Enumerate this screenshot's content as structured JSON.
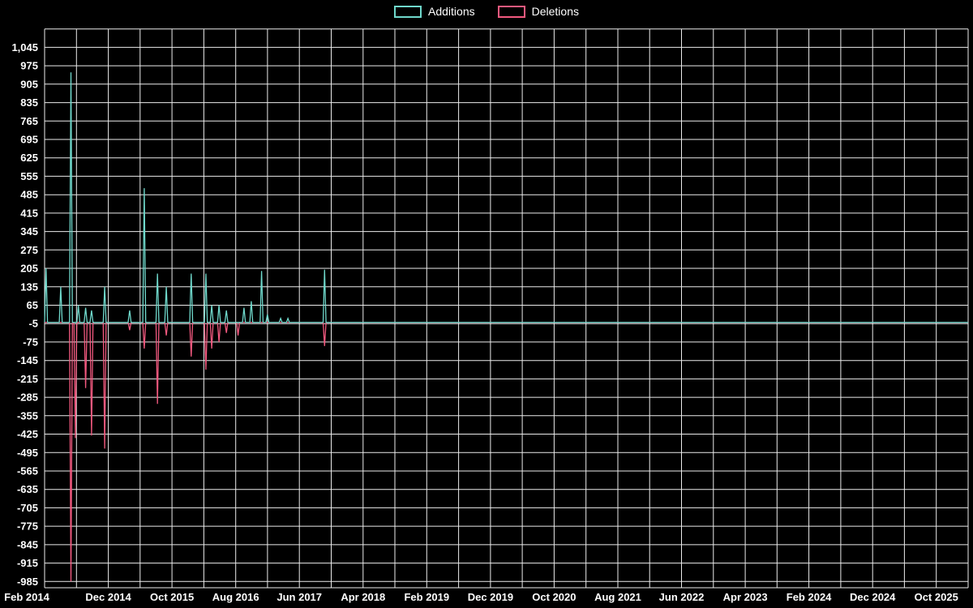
{
  "page": {
    "background": "#000000"
  },
  "chart_data": {
    "type": "line",
    "description": "Weekly code additions and deletions over time",
    "legend_position": "top-center",
    "grid": true,
    "background": "#000000",
    "gridline_color": "#ffffff",
    "text_color": "#ffffff",
    "x_axis": {
      "unit": "month",
      "tick_labels": [
        "Feb 2014",
        "Dec 2014",
        "Oct 2015",
        "Aug 2016",
        "Jun 2017",
        "Apr 2018",
        "Feb 2019",
        "Dec 2019",
        "Oct 2020",
        "Aug 2021",
        "Jun 2022",
        "Apr 2023",
        "Feb 2024",
        "Dec 2024",
        "Oct 2025"
      ],
      "label_every_months": 10,
      "gridline_every_months": 5,
      "total_months": 145
    },
    "y_axis": {
      "tick_values": [
        1045,
        975,
        905,
        835,
        765,
        695,
        625,
        555,
        485,
        415,
        345,
        275,
        205,
        135,
        65,
        -5,
        -75,
        -145,
        -215,
        -285,
        -355,
        -425,
        -495,
        -565,
        -635,
        -705,
        -775,
        -845,
        -915,
        -985
      ],
      "tick_labels": [
        "1,045",
        "975",
        "905",
        "835",
        "765",
        "695",
        "625",
        "555",
        "485",
        "415",
        "345",
        "275",
        "205",
        "135",
        "65",
        "-5",
        "-75",
        "-145",
        "-215",
        "-285",
        "-355",
        "-425",
        "-495",
        "-565",
        "-635",
        "-705",
        "-775",
        "-845",
        "-915",
        "-985"
      ],
      "extra_gridline_value": 1115,
      "min": -1010,
      "max": 1117
    },
    "weeks_per_month": 4.345,
    "series": [
      {
        "name": "Additions",
        "color": "#6fd8cb",
        "baseline": 0,
        "spikes": {
          "1": 205,
          "11": 135,
          "18": 950,
          "23": 65,
          "28": 55,
          "32": 45,
          "41": 135,
          "58": 45,
          "68": 510,
          "77": 185,
          "83": 135,
          "100": 185,
          "110": 185,
          "114": 65,
          "119": 65,
          "124": 45,
          "136": 55,
          "141": 80,
          "148": 195,
          "152": 30,
          "161": 15,
          "166": 15,
          "191": 200
        }
      },
      {
        "name": "Deletions",
        "color": "#f2597f",
        "baseline": 0,
        "spikes": {
          "18": -985,
          "21": -440,
          "28": -250,
          "32": -430,
          "41": -480,
          "58": -30,
          "68": -100,
          "77": -310,
          "83": -50,
          "100": -130,
          "110": -180,
          "114": -100,
          "119": -75,
          "124": -40,
          "132": -50,
          "191": -90
        }
      }
    ]
  }
}
